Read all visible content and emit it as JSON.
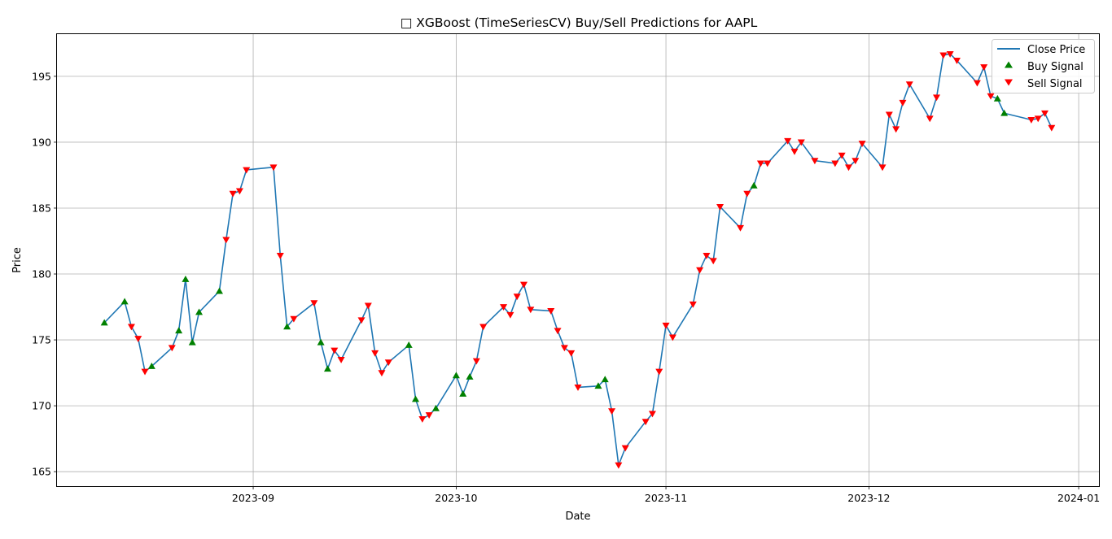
{
  "chart_data": {
    "type": "line",
    "title": "□ XGBoost (TimeSeriesCV) Buy/Sell Predictions for AAPL",
    "xlabel": "Date",
    "ylabel": "Price",
    "xlim": [
      "2023-08-03",
      "2024-01-04"
    ],
    "ylim": [
      163.9,
      198.2
    ],
    "x_ticks": [
      "2023-09-01",
      "2023-10-01",
      "2023-11-01",
      "2023-12-01",
      "2024-01-01"
    ],
    "x_tick_labels": [
      "2023-09",
      "2023-10",
      "2023-11",
      "2023-12",
      "2024-01"
    ],
    "y_ticks": [
      165,
      170,
      175,
      180,
      185,
      190,
      195
    ],
    "grid": true,
    "legend_position": "top-right",
    "colors": {
      "line": "#1f77b4",
      "buy": "#008000",
      "sell": "#ff0000",
      "grid": "#b0b0b0"
    },
    "legend": [
      "Close Price",
      "Buy Signal",
      "Sell Signal"
    ],
    "series": [
      {
        "name": "Close Price",
        "type": "line",
        "points": [
          {
            "x": "2023-08-10",
            "y": 176.3,
            "signal": "buy"
          },
          {
            "x": "2023-08-13",
            "y": 177.9,
            "signal": "buy"
          },
          {
            "x": "2023-08-14",
            "y": 176.0,
            "signal": "sell"
          },
          {
            "x": "2023-08-15",
            "y": 175.1,
            "signal": "sell"
          },
          {
            "x": "2023-08-16",
            "y": 172.6,
            "signal": "sell"
          },
          {
            "x": "2023-08-17",
            "y": 173.0,
            "signal": "buy"
          },
          {
            "x": "2023-08-20",
            "y": 174.4,
            "signal": "sell"
          },
          {
            "x": "2023-08-21",
            "y": 175.7,
            "signal": "buy"
          },
          {
            "x": "2023-08-22",
            "y": 179.6,
            "signal": "buy"
          },
          {
            "x": "2023-08-23",
            "y": 174.8,
            "signal": "buy"
          },
          {
            "x": "2023-08-24",
            "y": 177.1,
            "signal": "buy"
          },
          {
            "x": "2023-08-27",
            "y": 178.7,
            "signal": "buy"
          },
          {
            "x": "2023-08-28",
            "y": 182.6,
            "signal": "sell"
          },
          {
            "x": "2023-08-29",
            "y": 186.1,
            "signal": "sell"
          },
          {
            "x": "2023-08-30",
            "y": 186.3,
            "signal": "sell"
          },
          {
            "x": "2023-08-31",
            "y": 187.9,
            "signal": "sell"
          },
          {
            "x": "2023-09-04",
            "y": 188.1,
            "signal": "sell"
          },
          {
            "x": "2023-09-05",
            "y": 181.4,
            "signal": "sell"
          },
          {
            "x": "2023-09-06",
            "y": 176.0,
            "signal": "buy"
          },
          {
            "x": "2023-09-07",
            "y": 176.6,
            "signal": "sell"
          },
          {
            "x": "2023-09-10",
            "y": 177.8,
            "signal": "sell"
          },
          {
            "x": "2023-09-11",
            "y": 174.8,
            "signal": "buy"
          },
          {
            "x": "2023-09-12",
            "y": 172.8,
            "signal": "buy"
          },
          {
            "x": "2023-09-13",
            "y": 174.2,
            "signal": "sell"
          },
          {
            "x": "2023-09-14",
            "y": 173.5,
            "signal": "sell"
          },
          {
            "x": "2023-09-17",
            "y": 176.5,
            "signal": "sell"
          },
          {
            "x": "2023-09-18",
            "y": 177.6,
            "signal": "sell"
          },
          {
            "x": "2023-09-19",
            "y": 174.0,
            "signal": "sell"
          },
          {
            "x": "2023-09-20",
            "y": 172.5,
            "signal": "sell"
          },
          {
            "x": "2023-09-21",
            "y": 173.3,
            "signal": "sell"
          },
          {
            "x": "2023-09-24",
            "y": 174.6,
            "signal": "buy"
          },
          {
            "x": "2023-09-25",
            "y": 170.5,
            "signal": "buy"
          },
          {
            "x": "2023-09-26",
            "y": 169.0,
            "signal": "sell"
          },
          {
            "x": "2023-09-27",
            "y": 169.3,
            "signal": "sell"
          },
          {
            "x": "2023-09-28",
            "y": 169.8,
            "signal": "buy"
          },
          {
            "x": "2023-10-01",
            "y": 172.3,
            "signal": "buy"
          },
          {
            "x": "2023-10-02",
            "y": 170.9,
            "signal": "buy"
          },
          {
            "x": "2023-10-03",
            "y": 172.2,
            "signal": "buy"
          },
          {
            "x": "2023-10-04",
            "y": 173.4,
            "signal": "sell"
          },
          {
            "x": "2023-10-05",
            "y": 176.0,
            "signal": "sell"
          },
          {
            "x": "2023-10-08",
            "y": 177.5,
            "signal": "sell"
          },
          {
            "x": "2023-10-09",
            "y": 176.9,
            "signal": "sell"
          },
          {
            "x": "2023-10-10",
            "y": 178.3,
            "signal": "sell"
          },
          {
            "x": "2023-10-11",
            "y": 179.2,
            "signal": "sell"
          },
          {
            "x": "2023-10-12",
            "y": 177.3,
            "signal": "sell"
          },
          {
            "x": "2023-10-15",
            "y": 177.2,
            "signal": "sell"
          },
          {
            "x": "2023-10-16",
            "y": 175.7,
            "signal": "sell"
          },
          {
            "x": "2023-10-17",
            "y": 174.4,
            "signal": "sell"
          },
          {
            "x": "2023-10-18",
            "y": 174.0,
            "signal": "sell"
          },
          {
            "x": "2023-10-19",
            "y": 171.4,
            "signal": "sell"
          },
          {
            "x": "2023-10-22",
            "y": 171.5,
            "signal": "buy"
          },
          {
            "x": "2023-10-23",
            "y": 172.0,
            "signal": "buy"
          },
          {
            "x": "2023-10-24",
            "y": 169.6,
            "signal": "sell"
          },
          {
            "x": "2023-10-25",
            "y": 165.5,
            "signal": "sell"
          },
          {
            "x": "2023-10-26",
            "y": 166.8,
            "signal": "sell"
          },
          {
            "x": "2023-10-29",
            "y": 168.8,
            "signal": "sell"
          },
          {
            "x": "2023-10-30",
            "y": 169.4,
            "signal": "sell"
          },
          {
            "x": "2023-10-31",
            "y": 172.6,
            "signal": "sell"
          },
          {
            "x": "2023-11-01",
            "y": 176.1,
            "signal": "sell"
          },
          {
            "x": "2023-11-02",
            "y": 175.2,
            "signal": "sell"
          },
          {
            "x": "2023-11-05",
            "y": 177.7,
            "signal": "sell"
          },
          {
            "x": "2023-11-06",
            "y": 180.3,
            "signal": "sell"
          },
          {
            "x": "2023-11-07",
            "y": 181.4,
            "signal": "sell"
          },
          {
            "x": "2023-11-08",
            "y": 181.0,
            "signal": "sell"
          },
          {
            "x": "2023-11-09",
            "y": 185.1,
            "signal": "sell"
          },
          {
            "x": "2023-11-12",
            "y": 183.5,
            "signal": "sell"
          },
          {
            "x": "2023-11-13",
            "y": 186.1,
            "signal": "sell"
          },
          {
            "x": "2023-11-14",
            "y": 186.7,
            "signal": "buy"
          },
          {
            "x": "2023-11-15",
            "y": 188.4,
            "signal": "sell"
          },
          {
            "x": "2023-11-16",
            "y": 188.4,
            "signal": "sell"
          },
          {
            "x": "2023-11-19",
            "y": 190.1,
            "signal": "sell"
          },
          {
            "x": "2023-11-20",
            "y": 189.3,
            "signal": "sell"
          },
          {
            "x": "2023-11-21",
            "y": 190.0,
            "signal": "sell"
          },
          {
            "x": "2023-11-23",
            "y": 188.6,
            "signal": "sell"
          },
          {
            "x": "2023-11-26",
            "y": 188.4,
            "signal": "sell"
          },
          {
            "x": "2023-11-27",
            "y": 189.0,
            "signal": "sell"
          },
          {
            "x": "2023-11-28",
            "y": 188.1,
            "signal": "sell"
          },
          {
            "x": "2023-11-29",
            "y": 188.6,
            "signal": "sell"
          },
          {
            "x": "2023-11-30",
            "y": 189.9,
            "signal": "sell"
          },
          {
            "x": "2023-12-03",
            "y": 188.1,
            "signal": "sell"
          },
          {
            "x": "2023-12-04",
            "y": 192.1,
            "signal": "sell"
          },
          {
            "x": "2023-12-05",
            "y": 191.0,
            "signal": "sell"
          },
          {
            "x": "2023-12-06",
            "y": 193.0,
            "signal": "sell"
          },
          {
            "x": "2023-12-07",
            "y": 194.4,
            "signal": "sell"
          },
          {
            "x": "2023-12-10",
            "y": 191.8,
            "signal": "sell"
          },
          {
            "x": "2023-12-11",
            "y": 193.4,
            "signal": "sell"
          },
          {
            "x": "2023-12-12",
            "y": 196.6,
            "signal": "sell"
          },
          {
            "x": "2023-12-13",
            "y": 196.7,
            "signal": "sell"
          },
          {
            "x": "2023-12-14",
            "y": 196.2,
            "signal": "sell"
          },
          {
            "x": "2023-12-17",
            "y": 194.5,
            "signal": "sell"
          },
          {
            "x": "2023-12-18",
            "y": 195.7,
            "signal": "sell"
          },
          {
            "x": "2023-12-19",
            "y": 193.5,
            "signal": "sell"
          },
          {
            "x": "2023-12-20",
            "y": 193.3,
            "signal": "buy"
          },
          {
            "x": "2023-12-21",
            "y": 192.2,
            "signal": "buy"
          },
          {
            "x": "2023-12-25",
            "y": 191.7,
            "signal": "sell"
          },
          {
            "x": "2023-12-26",
            "y": 191.8,
            "signal": "sell"
          },
          {
            "x": "2023-12-27",
            "y": 192.2,
            "signal": "sell"
          },
          {
            "x": "2023-12-28",
            "y": 191.1,
            "signal": "sell"
          }
        ]
      }
    ]
  }
}
